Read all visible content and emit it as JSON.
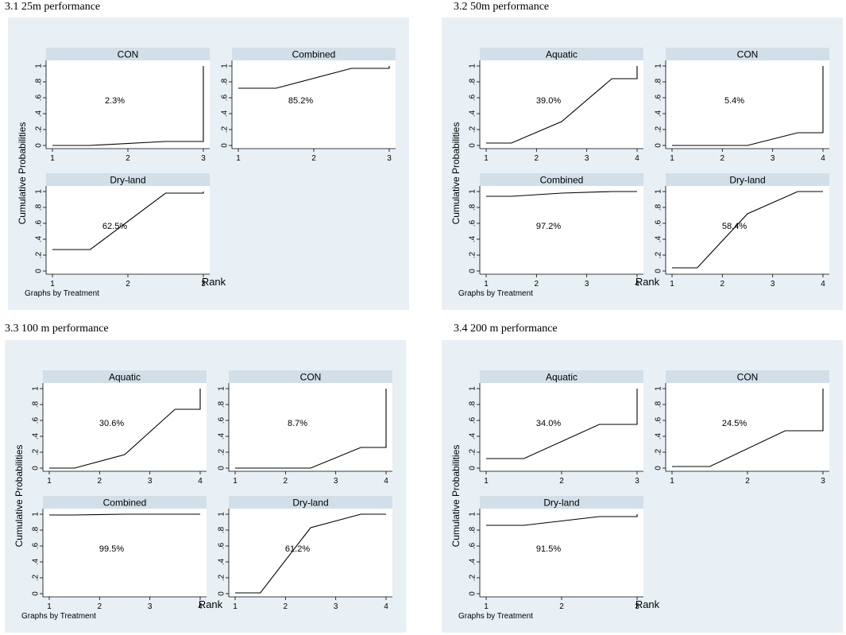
{
  "common": {
    "ytitle": "Cumulative Probabilities",
    "xtitle": "Rank",
    "note": "Graphs by Treatment",
    "y_ticks": [
      "0",
      ".2",
      ".4",
      ".6",
      ".8",
      "1"
    ]
  },
  "chart_data": [
    {
      "type": "line",
      "title": "3.1 25m performance",
      "xlabel": "Rank",
      "ylabel": "Cumulative Probabilities",
      "ylim": [
        0,
        1
      ],
      "x_ticks": [
        "1",
        "2",
        "3"
      ],
      "note": "Graphs by Treatment",
      "panels": [
        {
          "name": "CON",
          "label": "2.3%",
          "x": [
            1,
            1.5,
            2.5,
            3,
            3
          ],
          "y": [
            0.0,
            0.0,
            0.05,
            0.05,
            1.0
          ]
        },
        {
          "name": "Combined",
          "label": "85.2%",
          "x": [
            1,
            1.5,
            2.5,
            3,
            3
          ],
          "y": [
            0.72,
            0.72,
            0.97,
            0.97,
            1.0
          ]
        },
        {
          "name": "Dry-land",
          "label": "62.5%",
          "x": [
            1,
            1.5,
            2.5,
            3,
            3
          ],
          "y": [
            0.27,
            0.27,
            0.98,
            0.98,
            1.0
          ]
        }
      ]
    },
    {
      "type": "line",
      "title": "3.2 50m performance",
      "xlabel": "Rank",
      "ylabel": "Cumulative Probabilities",
      "ylim": [
        0,
        1
      ],
      "x_ticks": [
        "1",
        "2",
        "3",
        "4"
      ],
      "note": "Graphs by Treatment",
      "panels": [
        {
          "name": "Aquatic",
          "label": "39.0%",
          "x": [
            1,
            1.5,
            2.5,
            3.5,
            4,
            4
          ],
          "y": [
            0.03,
            0.03,
            0.3,
            0.84,
            0.84,
            1.0
          ]
        },
        {
          "name": "CON",
          "label": "5.4%",
          "x": [
            1,
            1.5,
            2.5,
            3.5,
            4,
            4
          ],
          "y": [
            0.0,
            0.0,
            0.0,
            0.16,
            0.16,
            1.0
          ]
        },
        {
          "name": "Combined",
          "label": "97.2%",
          "x": [
            1,
            1.5,
            2.5,
            3.5,
            4
          ],
          "y": [
            0.94,
            0.94,
            0.98,
            1.0,
            1.0
          ]
        },
        {
          "name": "Dry-land",
          "label": "58.4%",
          "x": [
            1,
            1.5,
            2.5,
            3.5,
            4
          ],
          "y": [
            0.04,
            0.04,
            0.72,
            1.0,
            1.0
          ]
        }
      ]
    },
    {
      "type": "line",
      "title": "3.3 100 m performance",
      "xlabel": "Rank",
      "ylabel": "Cumulative Probabilities",
      "ylim": [
        0,
        1
      ],
      "x_ticks": [
        "1",
        "2",
        "3",
        "4"
      ],
      "note": "Graphs by Treatment",
      "panels": [
        {
          "name": "Aquatic",
          "label": "30.6%",
          "x": [
            1,
            1.5,
            2.5,
            3.5,
            4,
            4
          ],
          "y": [
            0.0,
            0.0,
            0.17,
            0.74,
            0.74,
            1.0
          ]
        },
        {
          "name": "CON",
          "label": "8.7%",
          "x": [
            1,
            1.5,
            2.5,
            3.5,
            4,
            4
          ],
          "y": [
            0.0,
            0.0,
            0.0,
            0.26,
            0.26,
            1.0
          ]
        },
        {
          "name": "Combined",
          "label": "99.5%",
          "x": [
            1,
            1.5,
            2.5,
            3.5,
            4
          ],
          "y": [
            0.99,
            0.99,
            1.0,
            1.0,
            1.0
          ]
        },
        {
          "name": "Dry-land",
          "label": "61.2%",
          "x": [
            1,
            1.5,
            2.5,
            3.5,
            4
          ],
          "y": [
            0.01,
            0.01,
            0.83,
            1.0,
            1.0
          ]
        }
      ]
    },
    {
      "type": "line",
      "title": "3.4 200 m performance",
      "xlabel": "Rank",
      "ylabel": "Cumulative Probabilities",
      "ylim": [
        0,
        1
      ],
      "x_ticks": [
        "1",
        "2",
        "3"
      ],
      "note": "Graphs by Treatment",
      "panels": [
        {
          "name": "Aquatic",
          "label": "34.0%",
          "x": [
            1,
            1.5,
            2.5,
            3,
            3
          ],
          "y": [
            0.12,
            0.12,
            0.55,
            0.55,
            1.0
          ]
        },
        {
          "name": "CON",
          "label": "24.5%",
          "x": [
            1,
            1.5,
            2.5,
            3,
            3
          ],
          "y": [
            0.02,
            0.02,
            0.47,
            0.47,
            1.0
          ]
        },
        {
          "name": "Dry-land",
          "label": "91.5%",
          "x": [
            1,
            1.5,
            2.5,
            3,
            3
          ],
          "y": [
            0.86,
            0.86,
            0.97,
            0.97,
            1.0
          ]
        }
      ]
    }
  ]
}
